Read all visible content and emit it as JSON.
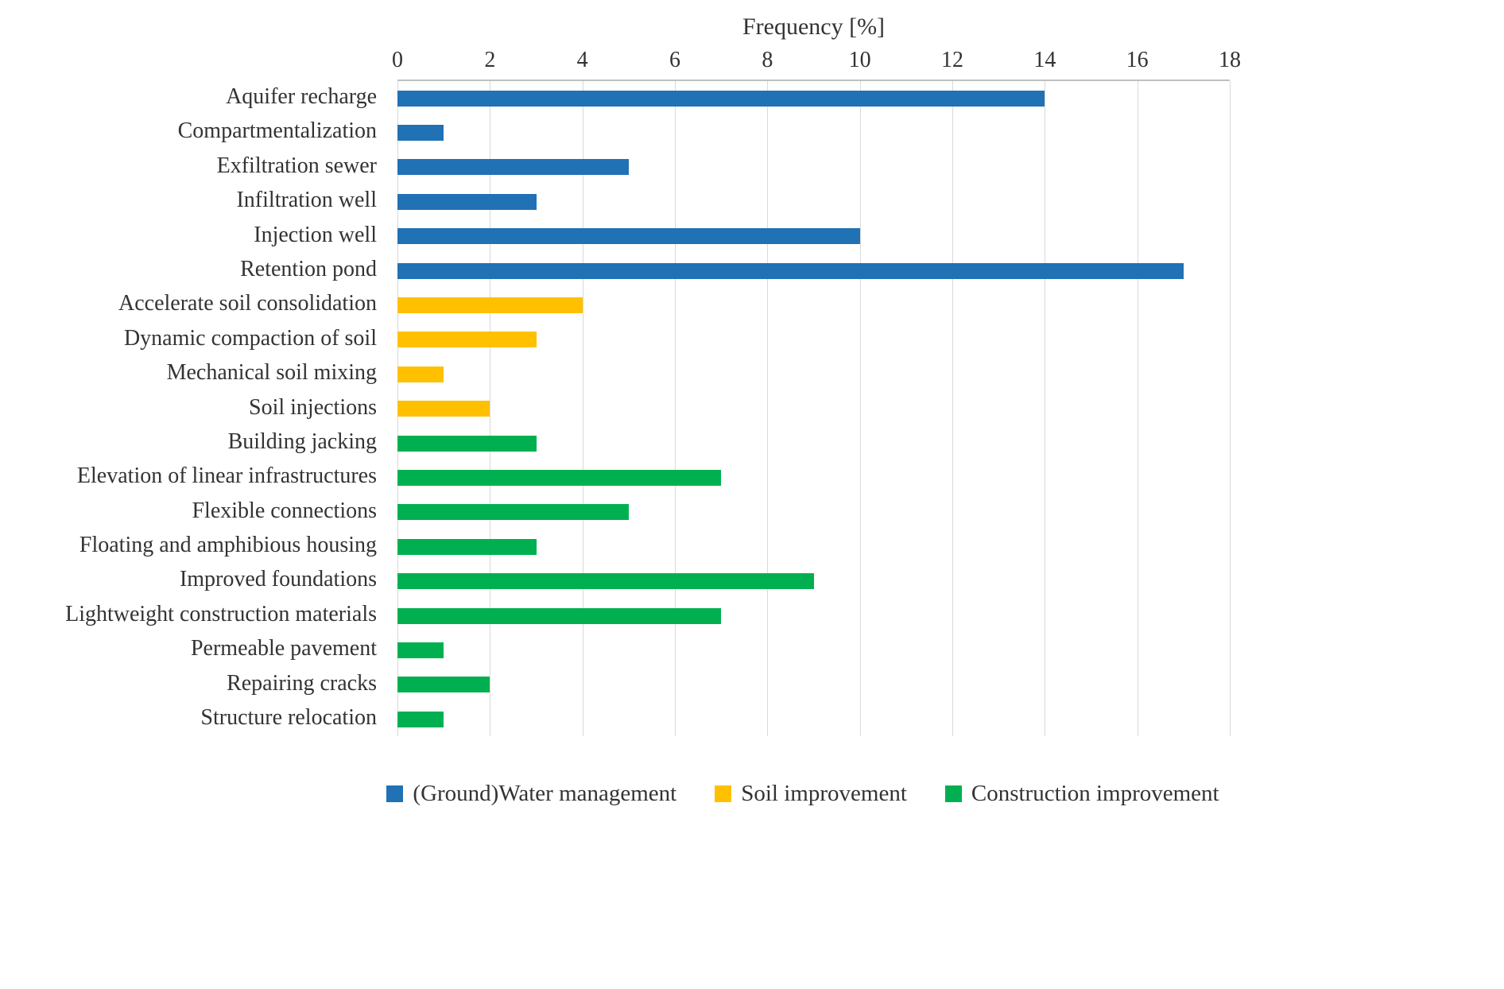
{
  "chart_data": {
    "type": "bar",
    "orientation": "horizontal",
    "title": "Frequency [%]",
    "xlabel": "Frequency [%]",
    "ylabel": "",
    "xlim": [
      0,
      18
    ],
    "ticks": [
      0,
      2,
      4,
      6,
      8,
      10,
      12,
      14,
      16,
      18
    ],
    "grid": true,
    "legend_position": "bottom",
    "groups": [
      {
        "name": "(Ground)Water management",
        "color": "#2171b5"
      },
      {
        "name": "Soil improvement",
        "color": "#ffc000"
      },
      {
        "name": "Construction improvement",
        "color": "#00b050"
      }
    ],
    "items": [
      {
        "label": "Aquifer recharge",
        "value": 14,
        "group": 0
      },
      {
        "label": "Compartmentalization",
        "value": 1,
        "group": 0
      },
      {
        "label": "Exfiltration sewer",
        "value": 5,
        "group": 0
      },
      {
        "label": "Infiltration well",
        "value": 3,
        "group": 0
      },
      {
        "label": "Injection well",
        "value": 10,
        "group": 0
      },
      {
        "label": "Retention pond",
        "value": 17,
        "group": 0
      },
      {
        "label": "Accelerate soil consolidation",
        "value": 4,
        "group": 1
      },
      {
        "label": "Dynamic compaction of soil",
        "value": 3,
        "group": 1
      },
      {
        "label": "Mechanical soil mixing",
        "value": 1,
        "group": 1
      },
      {
        "label": "Soil injections",
        "value": 2,
        "group": 1
      },
      {
        "label": "Building jacking",
        "value": 3,
        "group": 2
      },
      {
        "label": "Elevation of linear infrastructures",
        "value": 7,
        "group": 2
      },
      {
        "label": "Flexible connections",
        "value": 5,
        "group": 2
      },
      {
        "label": "Floating and amphibious housing",
        "value": 3,
        "group": 2
      },
      {
        "label": "Improved foundations",
        "value": 9,
        "group": 2
      },
      {
        "label": "Lightweight construction materials",
        "value": 7,
        "group": 2
      },
      {
        "label": "Permeable pavement",
        "value": 1,
        "group": 2
      },
      {
        "label": "Repairing cracks",
        "value": 2,
        "group": 2
      },
      {
        "label": "Structure relocation",
        "value": 1,
        "group": 2
      }
    ]
  }
}
